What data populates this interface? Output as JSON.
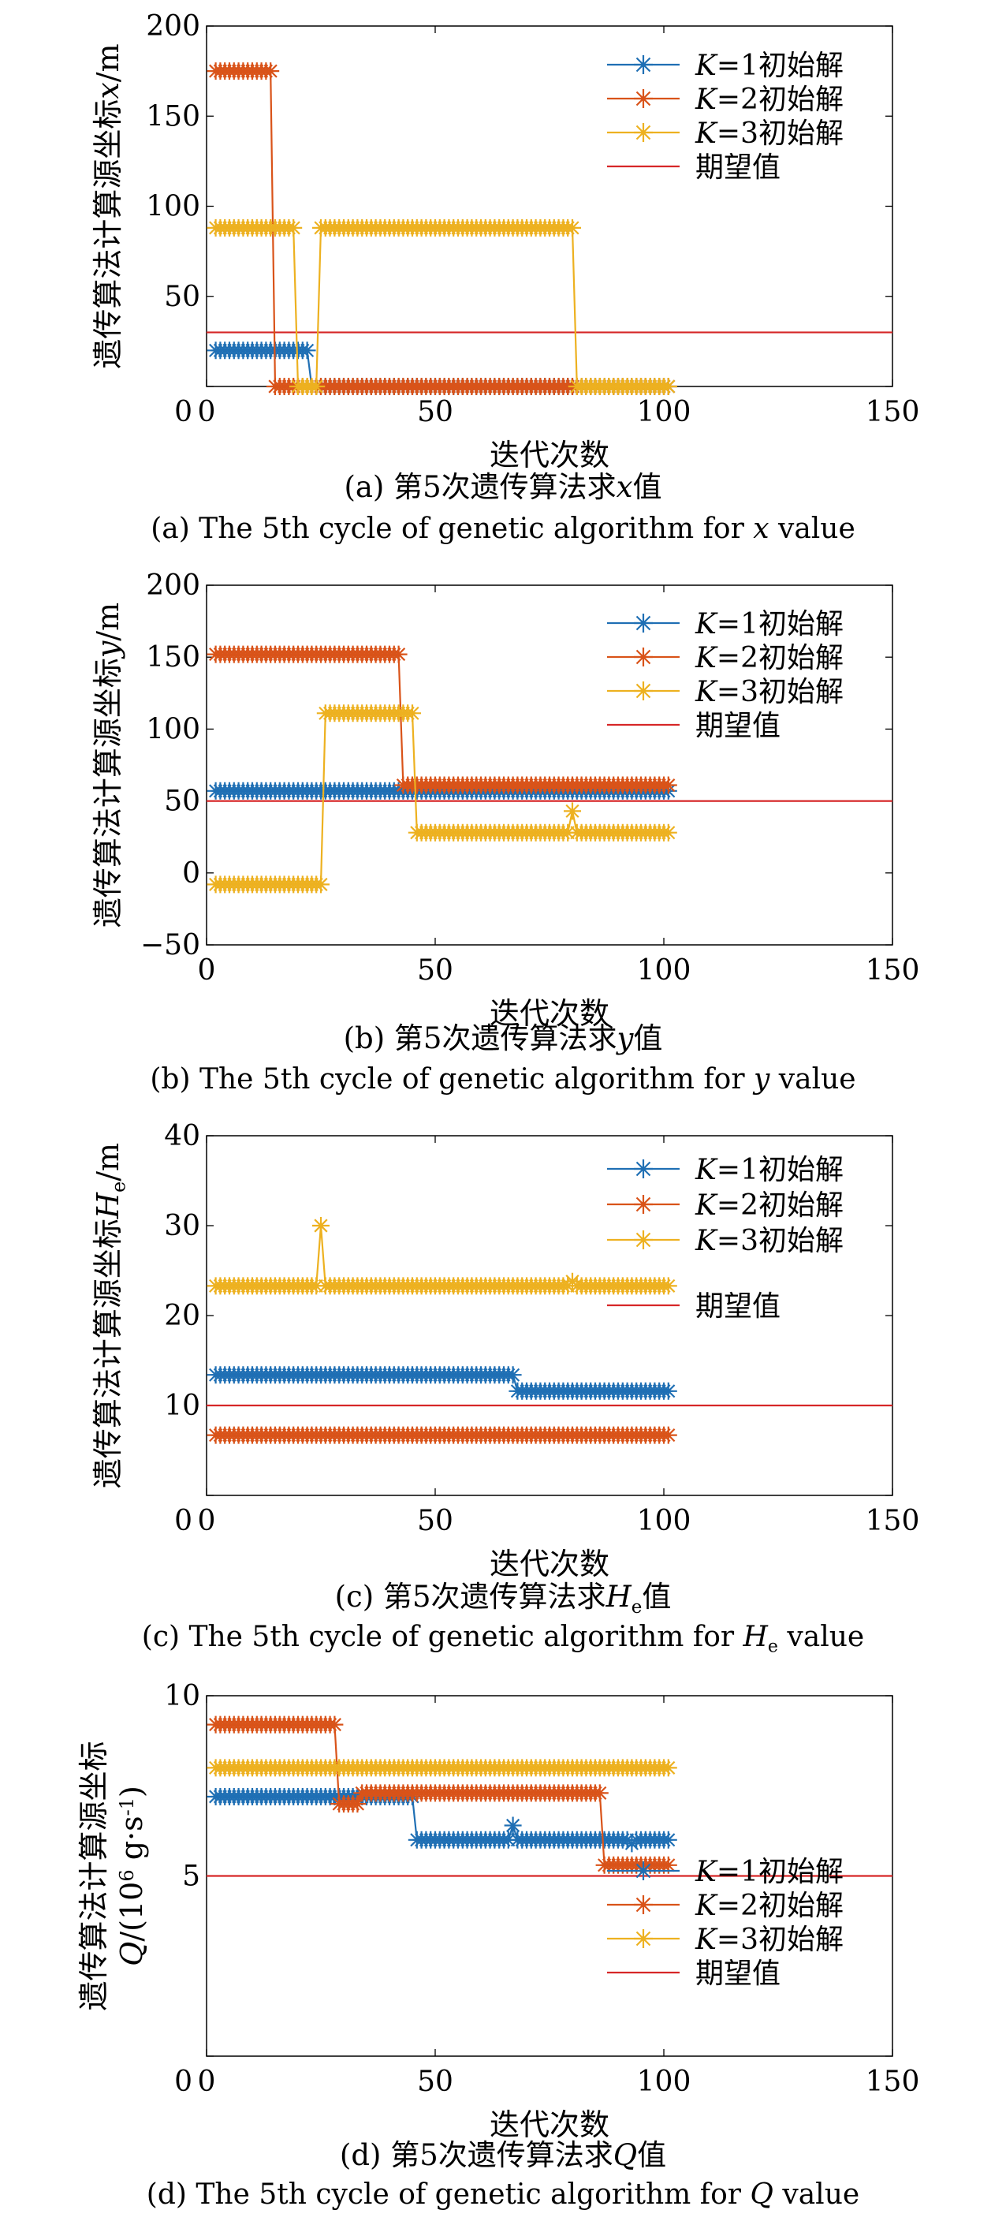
{
  "legend_labels": [
    "K=1初始解",
    "K=2初始解",
    "K=3初始解",
    "期望值"
  ],
  "colors": {
    "k1": "#1f6fb4",
    "k2": "#d95319",
    "k3": "#edb120",
    "expected": "#d62728"
  },
  "chart_data": [
    {
      "type": "line",
      "xlabel": "迭代次数",
      "ylabel": "遗传算法计算源坐标x/m",
      "caption_cn": "(a) 第5次遗传算法求x值",
      "caption_en": "(a) The 5th cycle of genetic algorithm for x value",
      "xlim": [
        0,
        150
      ],
      "ylim": [
        0,
        200
      ],
      "xticks": [
        0,
        50,
        100,
        150
      ],
      "yticks": [
        0,
        50,
        100,
        150,
        200
      ],
      "legend_position": "top-right",
      "expected": 30,
      "series": [
        {
          "name": "K=1初始解",
          "segments": [
            [
              2,
              22,
              20
            ],
            [
              23,
              101,
              0
            ]
          ]
        },
        {
          "name": "K=2初始解",
          "segments": [
            [
              2,
              14,
              175
            ],
            [
              15,
              101,
              0
            ]
          ]
        },
        {
          "name": "K=3初始解",
          "segments": [
            [
              2,
              19,
              88
            ],
            [
              20,
              24,
              0
            ],
            [
              25,
              80,
              88
            ],
            [
              81,
              101,
              0
            ]
          ]
        }
      ]
    },
    {
      "type": "line",
      "xlabel": "迭代次数",
      "ylabel": "遗传算法计算源坐标y/m",
      "caption_cn": "(b) 第5次遗传算法求y值",
      "caption_en": "(b) The 5th cycle of genetic algorithm for y value",
      "xlim": [
        0,
        150
      ],
      "ylim": [
        -50,
        200
      ],
      "xticks": [
        0,
        50,
        100,
        150
      ],
      "yticks": [
        -50,
        0,
        50,
        100,
        150,
        200
      ],
      "legend_position": "top-right",
      "expected": 50,
      "series": [
        {
          "name": "K=1初始解",
          "segments": [
            [
              2,
              101,
              57
            ]
          ]
        },
        {
          "name": "K=2初始解",
          "segments": [
            [
              2,
              42,
              152
            ],
            [
              43,
              101,
              61
            ]
          ]
        },
        {
          "name": "K=3初始解",
          "segments": [
            [
              2,
              25,
              -8
            ],
            [
              26,
              45,
              111
            ],
            [
              46,
              101,
              28
            ]
          ],
          "spikes": [
            [
              80,
              43
            ]
          ]
        }
      ]
    },
    {
      "type": "line",
      "xlabel": "迭代次数",
      "ylabel": "遗传算法计算源坐标H_e/m",
      "caption_cn": "(c) 第5次遗传算法求H_e值",
      "caption_en": "(c) The 5th cycle of genetic algorithm for H_e value",
      "xlim": [
        0,
        150
      ],
      "ylim": [
        0,
        40
      ],
      "xticks": [
        0,
        50,
        100,
        150
      ],
      "yticks": [
        0,
        10,
        20,
        30,
        40
      ],
      "legend_position": "top-right",
      "expected": 10,
      "series": [
        {
          "name": "K=1初始解",
          "segments": [
            [
              2,
              67,
              13.4
            ],
            [
              68,
              101,
              11.6
            ]
          ]
        },
        {
          "name": "K=2初始解",
          "segments": [
            [
              2,
              101,
              6.7
            ]
          ]
        },
        {
          "name": "K=3初始解",
          "segments": [
            [
              2,
              101,
              23.3
            ]
          ],
          "spikes": [
            [
              25,
              30
            ],
            [
              80,
              23.8
            ]
          ]
        }
      ]
    },
    {
      "type": "line",
      "xlabel": "迭代次数",
      "ylabel": "遗传算法计算源坐标Q/(10^6 g·s^-1)",
      "caption_cn": "(d) 第5次遗传算法求Q值",
      "caption_en": "(d) The 5th cycle of genetic algorithm for Q value",
      "xlim": [
        0,
        150
      ],
      "ylim": [
        0,
        10
      ],
      "xticks": [
        0,
        50,
        100,
        150
      ],
      "yticks": [
        0,
        5,
        10
      ],
      "legend_position": "lower-right",
      "expected": 5,
      "series": [
        {
          "name": "K=1初始解",
          "segments": [
            [
              2,
              45,
              7.2
            ],
            [
              46,
              101,
              6.0
            ]
          ],
          "spikes": [
            [
              67,
              6.4
            ],
            [
              93,
              5.9
            ]
          ]
        },
        {
          "name": "K=2初始解",
          "segments": [
            [
              2,
              28,
              9.2
            ],
            [
              29,
              33,
              7.0
            ],
            [
              34,
              86,
              7.3
            ],
            [
              87,
              101,
              5.3
            ]
          ]
        },
        {
          "name": "K=3初始解",
          "segments": [
            [
              2,
              101,
              8.0
            ]
          ]
        }
      ]
    }
  ]
}
